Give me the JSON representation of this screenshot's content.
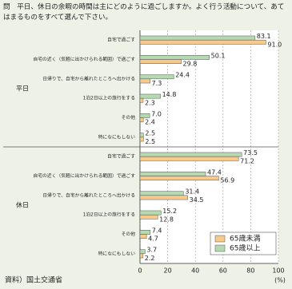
{
  "chart_data": {
    "type": "bar",
    "orientation": "horizontal",
    "title": "問　平日、休日の余暇の時間は主にどのように過ごしますか。よく行う活動について、あてはまるものをすべて選んで下さい。",
    "groups": [
      "平日",
      "休日"
    ],
    "categories": [
      "自宅で過ごす",
      "自宅の近く（気軽に出かけられる範囲）で過ごす",
      "日帰りで、自宅から離れたところへ出かける",
      "1泊2日以上の旅行をする",
      "その他",
      "特になにもしない",
      "自宅で過ごす",
      "自宅の近く（気軽に出かけられる範囲）で過ごす",
      "日帰りで、自宅から離れたところへ出かける",
      "1泊2日以上の旅行をする",
      "その他",
      "特になにもしない"
    ],
    "series": [
      {
        "name": "65歳未満",
        "color": "#f7c98a",
        "values": [
          91.0,
          29.8,
          7.3,
          2.3,
          2.4,
          2.5,
          71.2,
          56.9,
          34.5,
          12.8,
          4.7,
          2.2
        ],
        "value_labels": [
          "91.0",
          "29.8",
          "7.3",
          "2.3",
          "2.4",
          "2.5",
          "71.2",
          "56.9",
          "34.5",
          "12.8",
          "4.7",
          "2.2"
        ]
      },
      {
        "name": "65歳以上",
        "color": "#b5d9b0",
        "values": [
          83.1,
          50.1,
          24.4,
          14.8,
          7.0,
          2.5,
          73.5,
          47.4,
          31.4,
          15.2,
          7.4,
          3.7
        ],
        "value_labels": [
          "83.1",
          "50.1",
          "24.4",
          "14.8",
          "7.0",
          "2.5",
          "73.5",
          "47.4",
          "31.4",
          "15.2",
          "7.4",
          "3.7"
        ]
      }
    ],
    "xlim": [
      0,
      100
    ],
    "xticks": [
      0,
      20,
      40,
      60,
      80,
      100
    ],
    "x_unit": "(%)",
    "grid": true,
    "legend": "lower right",
    "source": "資料）国土交通省"
  }
}
